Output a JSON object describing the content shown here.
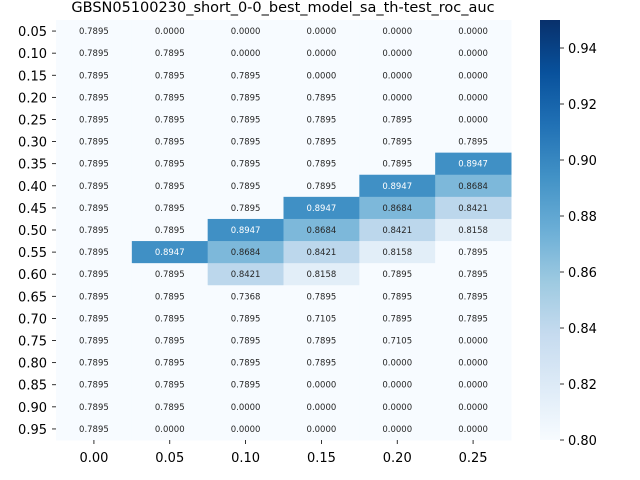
{
  "chart_data": {
    "type": "heatmap",
    "title": "GBSN05100230_short_0-0_best_model_sa_th-test_roc_auc",
    "x_labels": [
      "0.00",
      "0.05",
      "0.10",
      "0.15",
      "0.20",
      "0.25"
    ],
    "y_labels": [
      "0.05",
      "0.10",
      "0.15",
      "0.20",
      "0.25",
      "0.30",
      "0.35",
      "0.40",
      "0.45",
      "0.50",
      "0.55",
      "0.60",
      "0.65",
      "0.70",
      "0.75",
      "0.80",
      "0.85",
      "0.90",
      "0.95"
    ],
    "values": [
      [
        0.7895,
        0.0,
        0.0,
        0.0,
        0.0,
        0.0
      ],
      [
        0.7895,
        0.7895,
        0.0,
        0.0,
        0.0,
        0.0
      ],
      [
        0.7895,
        0.7895,
        0.7895,
        0.0,
        0.0,
        0.0
      ],
      [
        0.7895,
        0.7895,
        0.7895,
        0.7895,
        0.0,
        0.0
      ],
      [
        0.7895,
        0.7895,
        0.7895,
        0.7895,
        0.7895,
        0.0
      ],
      [
        0.7895,
        0.7895,
        0.7895,
        0.7895,
        0.7895,
        0.7895
      ],
      [
        0.7895,
        0.7895,
        0.7895,
        0.7895,
        0.7895,
        0.8947
      ],
      [
        0.7895,
        0.7895,
        0.7895,
        0.7895,
        0.8947,
        0.8684
      ],
      [
        0.7895,
        0.7895,
        0.7895,
        0.8947,
        0.8684,
        0.8421
      ],
      [
        0.7895,
        0.7895,
        0.8947,
        0.8684,
        0.8421,
        0.8158
      ],
      [
        0.7895,
        0.8947,
        0.8684,
        0.8421,
        0.8158,
        0.7895
      ],
      [
        0.7895,
        0.7895,
        0.8421,
        0.8158,
        0.7895,
        0.7895
      ],
      [
        0.7895,
        0.7895,
        0.7368,
        0.7895,
        0.7895,
        0.7895
      ],
      [
        0.7895,
        0.7895,
        0.7895,
        0.7105,
        0.7895,
        0.7895
      ],
      [
        0.7895,
        0.7895,
        0.7895,
        0.7895,
        0.7105,
        0.0
      ],
      [
        0.7895,
        0.7895,
        0.7895,
        0.7895,
        0.0,
        0.0
      ],
      [
        0.7895,
        0.7895,
        0.7895,
        0.0,
        0.0,
        0.0
      ],
      [
        0.7895,
        0.7895,
        0.0,
        0.0,
        0.0,
        0.0
      ],
      [
        0.7895,
        0.0,
        0.0,
        0.0,
        0.0,
        0.0
      ]
    ],
    "value_format": "4 decimals",
    "colormap": "Blues",
    "vmin": 0.8,
    "vmax": 0.95,
    "colorbar_ticks": [
      "0.80",
      "0.82",
      "0.84",
      "0.86",
      "0.88",
      "0.90",
      "0.92",
      "0.94"
    ],
    "colorbar_tick_values": [
      0.8,
      0.82,
      0.84,
      0.86,
      0.88,
      0.9,
      0.92,
      0.94
    ],
    "xlabel": "",
    "ylabel": ""
  }
}
